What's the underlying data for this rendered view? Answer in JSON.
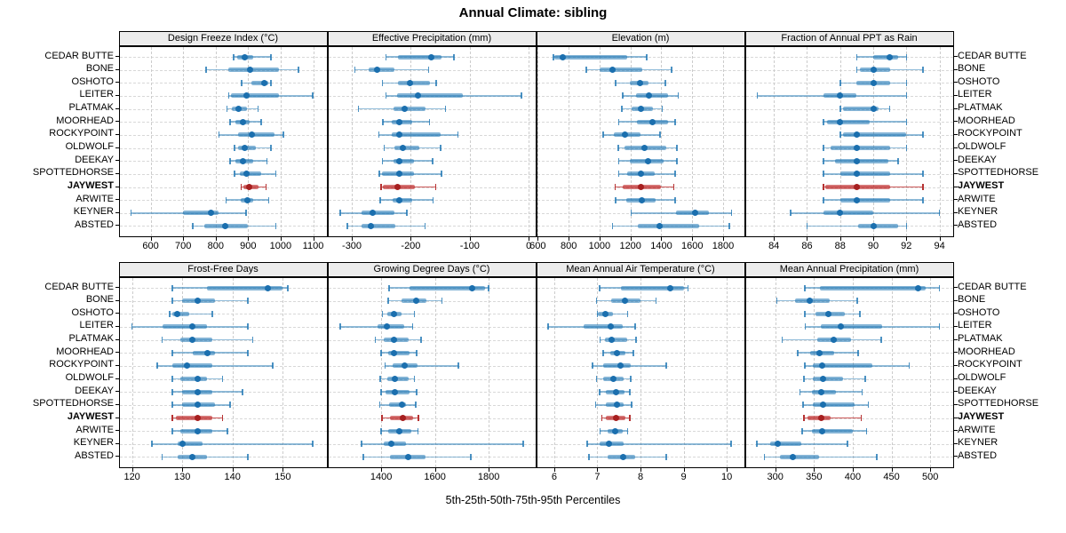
{
  "title": "Annual Climate: sibling",
  "caption": "5th-25th-50th-75th-95th Percentiles",
  "highlight_station": "JAYWEST",
  "stations": [
    "CEDAR BUTTE",
    "BONE",
    "OSHOTO",
    "LEITER",
    "PLATMAK",
    "MOORHEAD",
    "ROCKYPOINT",
    "OLDWOLF",
    "DEEKAY",
    "SPOTTEDHORSE",
    "JAYWEST",
    "ARWITE",
    "KEYNER",
    "ABSTED"
  ],
  "colors": {
    "blue_line": "rgba(31,119,180,0.50)",
    "blue_cap": "rgba(31,119,180,0.80)",
    "blue_box": "rgba(31,119,180,0.55)",
    "blue_dot": "#1b6fae",
    "red_line": "rgba(190,45,45,0.80)",
    "red_cap": "#b63232",
    "red_box": "rgba(190,45,45,0.65)",
    "red_dot": "#a61f1f",
    "grid": "#cccccc",
    "header_bg": "#ececec"
  },
  "chart_data": [
    {
      "type": "dotplot-percentiles",
      "row": 0,
      "col": 0,
      "title": "Design Freeze Index (°C)",
      "percentiles": [
        5,
        25,
        50,
        75,
        95
      ],
      "xlim": [
        504,
        1141
      ],
      "xticks": [
        600,
        700,
        800,
        900,
        1000,
        1100
      ],
      "series": [
        [
          855,
          865,
          890,
          915,
          970
        ],
        [
          770,
          840,
          905,
          995,
          1055
        ],
        [
          880,
          910,
          950,
          962,
          970
        ],
        [
          840,
          848,
          895,
          995,
          1098
        ],
        [
          835,
          850,
          870,
          895,
          930
        ],
        [
          845,
          860,
          885,
          905,
          940
        ],
        [
          810,
          870,
          910,
          980,
          1008
        ],
        [
          858,
          870,
          890,
          925,
          970
        ],
        [
          845,
          860,
          885,
          915,
          958
        ],
        [
          858,
          875,
          895,
          940,
          985
        ],
        [
          878,
          885,
          902,
          933,
          955
        ],
        [
          832,
          878,
          898,
          915,
          963
        ],
        [
          540,
          700,
          786,
          808,
          894
        ],
        [
          730,
          766,
          830,
          900,
          985
        ]
      ]
    },
    {
      "type": "dotplot-percentiles",
      "row": 0,
      "col": 1,
      "title": "Effective Precipitation (mm)",
      "percentiles": [
        5,
        25,
        50,
        75,
        95
      ],
      "xlim": [
        -340,
        11
      ],
      "xticks": [
        -300,
        -200,
        -100,
        0
      ],
      "series": [
        [
          -242,
          -222,
          -166,
          -148,
          -127
        ],
        [
          -295,
          -272,
          -257,
          -228,
          -170
        ],
        [
          -248,
          -222,
          -202,
          -168,
          -157
        ],
        [
          -242,
          -223,
          -188,
          -112,
          -12
        ],
        [
          -289,
          -230,
          -210,
          -175,
          -141
        ],
        [
          -247,
          -232,
          -220,
          -197,
          -168
        ],
        [
          -254,
          -233,
          -219,
          -149,
          -120
        ],
        [
          -245,
          -228,
          -214,
          -185,
          -149
        ],
        [
          -248,
          -230,
          -220,
          -195,
          -163
        ],
        [
          -253,
          -249,
          -219,
          -194,
          -148
        ],
        [
          -250,
          -247,
          -223,
          -193,
          -158
        ],
        [
          -252,
          -231,
          -220,
          -198,
          -162
        ],
        [
          -320,
          -283,
          -265,
          -228,
          -207
        ],
        [
          -308,
          -283,
          -267,
          -227,
          -176
        ]
      ]
    },
    {
      "type": "dotplot-percentiles",
      "row": 0,
      "col": 2,
      "title": "Elevation (m)",
      "percentiles": [
        5,
        25,
        50,
        75,
        95
      ],
      "xlim": [
        595,
        1935
      ],
      "xticks": [
        600,
        800,
        1000,
        1200,
        1400,
        1600,
        1800
      ],
      "series": [
        [
          700,
          710,
          760,
          1180,
          1305
        ],
        [
          915,
          1000,
          1085,
          1275,
          1465
        ],
        [
          1105,
          1195,
          1260,
          1315,
          1425
        ],
        [
          1150,
          1235,
          1320,
          1445,
          1510
        ],
        [
          1145,
          1205,
          1270,
          1345,
          1405
        ],
        [
          1125,
          1240,
          1340,
          1445,
          1490
        ],
        [
          1025,
          1095,
          1165,
          1265,
          1390
        ],
        [
          1120,
          1160,
          1290,
          1430,
          1500
        ],
        [
          1125,
          1195,
          1315,
          1415,
          1500
        ],
        [
          1125,
          1180,
          1265,
          1355,
          1490
        ],
        [
          1100,
          1150,
          1270,
          1400,
          1480
        ],
        [
          1105,
          1175,
          1275,
          1365,
          1490
        ],
        [
          1205,
          1495,
          1620,
          1710,
          1855
        ],
        [
          1085,
          1250,
          1390,
          1645,
          1840
        ]
      ]
    },
    {
      "type": "dotplot-percentiles",
      "row": 0,
      "col": 3,
      "title": "Fraction of Annual PPT as Rain",
      "percentiles": [
        5,
        25,
        50,
        75,
        95
      ],
      "xlim": [
        82.3,
        94.8
      ],
      "xticks": [
        84,
        86,
        88,
        90,
        92,
        94
      ],
      "series": [
        [
          89,
          90,
          91,
          91.5,
          92
        ],
        [
          89,
          89.2,
          90,
          91,
          93
        ],
        [
          88,
          89,
          90,
          91,
          92
        ],
        [
          83,
          87,
          88,
          89,
          92
        ],
        [
          88,
          88.2,
          90,
          90.3,
          91
        ],
        [
          87,
          87.2,
          88,
          89.8,
          92
        ],
        [
          88,
          88.2,
          89,
          92,
          93
        ],
        [
          87,
          87.4,
          89,
          91,
          92
        ],
        [
          87,
          87.7,
          89,
          90.9,
          91.5
        ],
        [
          87,
          88,
          89,
          91,
          93
        ],
        [
          87,
          87.1,
          89,
          91,
          93
        ],
        [
          87,
          88,
          89,
          91,
          93
        ],
        [
          85,
          87,
          88,
          90,
          94
        ],
        [
          86,
          89.1,
          90,
          91.5,
          92
        ]
      ]
    },
    {
      "type": "dotplot-percentiles",
      "row": 1,
      "col": 0,
      "title": "Frost-Free Days",
      "percentiles": [
        5,
        25,
        50,
        75,
        95
      ],
      "xlim": [
        117.5,
        158.7
      ],
      "xticks": [
        120,
        130,
        140,
        150
      ],
      "series": [
        [
          128,
          135,
          147,
          150,
          151
        ],
        [
          128,
          130,
          133,
          136.5,
          143
        ],
        [
          127.5,
          128,
          129,
          131.3,
          136
        ],
        [
          120,
          126,
          132,
          135,
          143
        ],
        [
          126,
          129.6,
          132,
          136,
          144
        ],
        [
          128,
          132,
          135,
          136.5,
          143
        ],
        [
          125,
          128,
          131,
          136,
          148
        ],
        [
          128,
          129.6,
          133,
          135,
          138
        ],
        [
          128,
          130,
          133,
          136,
          142
        ],
        [
          128,
          130,
          133,
          136.5,
          139.5
        ],
        [
          128,
          128.7,
          133,
          136,
          138
        ],
        [
          128,
          129.6,
          133,
          136,
          139
        ],
        [
          124,
          129,
          130,
          134,
          156
        ],
        [
          126,
          129,
          132,
          135,
          143
        ]
      ]
    },
    {
      "type": "dotplot-percentiles",
      "row": 1,
      "col": 1,
      "title": "Growing Degree Days (°C)",
      "percentiles": [
        5,
        25,
        50,
        75,
        95
      ],
      "xlim": [
        1203,
        1973
      ],
      "xticks": [
        1400,
        1600,
        1800
      ],
      "series": [
        [
          1430,
          1505,
          1740,
          1786,
          1799
        ],
        [
          1427,
          1476,
          1531,
          1569,
          1626
        ],
        [
          1405,
          1422,
          1447,
          1476,
          1523
        ],
        [
          1247,
          1386,
          1422,
          1487,
          1517
        ],
        [
          1378,
          1411,
          1449,
          1502,
          1548
        ],
        [
          1400,
          1425,
          1449,
          1506,
          1531
        ],
        [
          1414,
          1444,
          1487,
          1534,
          1687
        ],
        [
          1397,
          1422,
          1451,
          1502,
          1523
        ],
        [
          1400,
          1416,
          1451,
          1504,
          1531
        ],
        [
          1395,
          1430,
          1477,
          1491,
          1528
        ],
        [
          1403,
          1433,
          1480,
          1520,
          1539
        ],
        [
          1400,
          1427,
          1466,
          1513,
          1537
        ],
        [
          1327,
          1411,
          1436,
          1491,
          1928
        ],
        [
          1334,
          1433,
          1502,
          1564,
          1733
        ]
      ]
    },
    {
      "type": "dotplot-percentiles",
      "row": 1,
      "col": 2,
      "title": "Mean Annual Air Temperature (°C)",
      "percentiles": [
        5,
        25,
        50,
        75,
        95
      ],
      "xlim": [
        5.6,
        10.4
      ],
      "xticks": [
        6,
        7,
        8,
        9,
        10
      ],
      "series": [
        [
          7.05,
          7.55,
          8.7,
          9.0,
          9.1
        ],
        [
          6.98,
          7.32,
          7.64,
          8.0,
          8.36
        ],
        [
          7.0,
          7.02,
          7.18,
          7.37,
          7.7
        ],
        [
          5.86,
          6.68,
          7.3,
          7.59,
          7.88
        ],
        [
          7.06,
          7.18,
          7.34,
          7.69,
          7.9
        ],
        [
          7.13,
          7.3,
          7.45,
          7.64,
          7.84
        ],
        [
          6.89,
          7.13,
          7.54,
          7.77,
          8.6
        ],
        [
          6.98,
          7.13,
          7.37,
          7.61,
          7.77
        ],
        [
          7.05,
          7.2,
          7.43,
          7.62,
          7.75
        ],
        [
          6.96,
          7.2,
          7.45,
          7.6,
          7.8
        ],
        [
          7.1,
          7.2,
          7.43,
          7.66,
          7.75
        ],
        [
          7.06,
          7.23,
          7.41,
          7.59,
          7.7
        ],
        [
          6.77,
          7.05,
          7.27,
          7.6,
          10.1
        ],
        [
          6.8,
          7.23,
          7.6,
          7.88,
          8.6
        ]
      ]
    },
    {
      "type": "dotplot-percentiles",
      "row": 1,
      "col": 3,
      "title": "Mean Annual Precipitation (mm)",
      "percentiles": [
        5,
        25,
        50,
        75,
        95
      ],
      "xlim": [
        262,
        529
      ],
      "xticks": [
        300,
        350,
        400,
        450,
        500
      ],
      "series": [
        [
          338,
          358,
          484,
          494,
          512
        ],
        [
          302,
          326,
          345,
          370,
          406
        ],
        [
          338,
          352,
          369,
          390,
          409
        ],
        [
          339,
          359,
          385,
          438,
          512
        ],
        [
          309,
          354,
          375,
          398,
          437
        ],
        [
          329,
          345,
          357,
          376,
          407
        ],
        [
          338,
          348,
          360,
          425,
          473
        ],
        [
          337,
          349,
          362,
          387,
          416
        ],
        [
          332,
          347,
          359,
          378,
          412
        ],
        [
          336,
          348,
          362,
          402,
          420
        ],
        [
          337,
          342,
          359,
          371,
          411
        ],
        [
          335,
          347,
          360,
          400,
          418
        ],
        [
          276,
          294,
          303,
          334,
          393
        ],
        [
          286,
          306,
          323,
          357,
          431
        ]
      ]
    }
  ]
}
